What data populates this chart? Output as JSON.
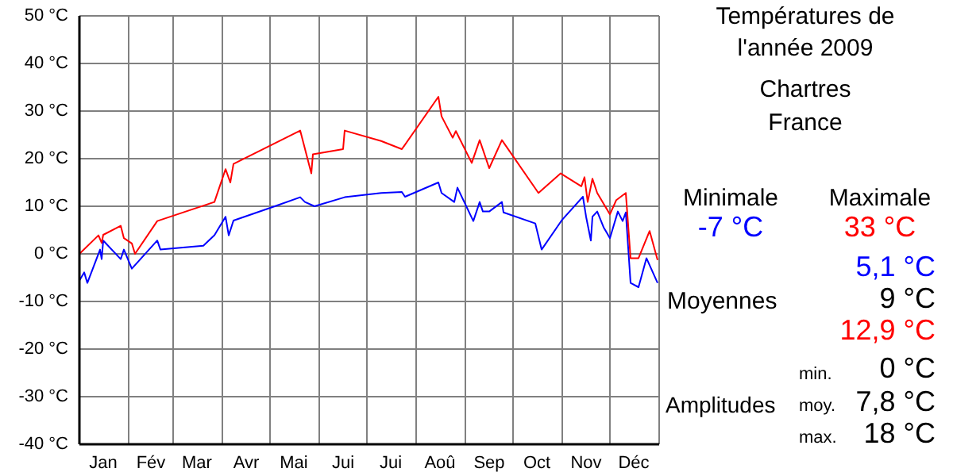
{
  "chart_data": {
    "type": "line",
    "title": "Températures de\nl'année 2009",
    "subtitle": "Chartres\nFrance",
    "xlim": [
      "2009-01-01",
      "2010-01-01"
    ],
    "xticks": [
      {
        "value": "2009-01-01",
        "label": null
      },
      {
        "value": "2009-01-16",
        "label": "Jan"
      },
      {
        "value": "2009-02-01",
        "label": null
      },
      {
        "value": "2009-02-15",
        "label": "Fév"
      },
      {
        "value": "2009-03-01",
        "label": null
      },
      {
        "value": "2009-03-16",
        "label": "Mar"
      },
      {
        "value": "2009-04-01",
        "label": null
      },
      {
        "value": "2009-04-16",
        "label": "Avr"
      },
      {
        "value": "2009-05-01",
        "label": null
      },
      {
        "value": "2009-05-16",
        "label": "Mai"
      },
      {
        "value": "2009-06-01",
        "label": null
      },
      {
        "value": "2009-06-16",
        "label": "Jui"
      },
      {
        "value": "2009-07-01",
        "label": null
      },
      {
        "value": "2009-07-16",
        "label": "Jui"
      },
      {
        "value": "2009-08-01",
        "label": null
      },
      {
        "value": "2009-08-16",
        "label": "Aoû"
      },
      {
        "value": "2009-09-01",
        "label": null
      },
      {
        "value": "2009-09-16",
        "label": "Sep"
      },
      {
        "value": "2009-10-01",
        "label": null
      },
      {
        "value": "2009-10-16",
        "label": "Oct"
      },
      {
        "value": "2009-11-01",
        "label": null
      },
      {
        "value": "2009-11-16",
        "label": "Nov"
      },
      {
        "value": "2009-12-01",
        "label": null
      },
      {
        "value": "2009-12-16",
        "label": "Déc"
      },
      {
        "value": "2010-01-01",
        "label": null
      }
    ],
    "ylim": [
      -40,
      50
    ],
    "yticks": [
      {
        "value": -40,
        "label": "-40 °C"
      },
      {
        "value": -30,
        "label": "-30 °C"
      },
      {
        "value": -20,
        "label": "-20 °C"
      },
      {
        "value": -10,
        "label": "-10 °C"
      },
      {
        "value": 0,
        "label": "0 °C"
      },
      {
        "value": 10,
        "label": "10 °C"
      },
      {
        "value": 20,
        "label": "20 °C"
      },
      {
        "value": 30,
        "label": "30 °C"
      },
      {
        "value": 40,
        "label": "40 °C"
      },
      {
        "value": 50,
        "label": "50 °C"
      }
    ],
    "grid": true,
    "marker": "none",
    "line_style": "solid",
    "series": [
      {
        "color": "#0000ff",
        "x": [
          "2009-01-01",
          "2009-01-04",
          "2009-01-06",
          "2009-01-14",
          "2009-01-15",
          "2009-01-16",
          "2009-01-27",
          "2009-01-29",
          "2009-02-03",
          "2009-02-19",
          "2009-02-21",
          "2009-03-20",
          "2009-03-27",
          "2009-04-03",
          "2009-04-05",
          "2009-04-08",
          "2009-05-04",
          "2009-05-20",
          "2009-05-23",
          "2009-05-29",
          "2009-06-17",
          "2009-07-10",
          "2009-07-23",
          "2009-07-25",
          "2009-08-15",
          "2009-08-17",
          "2009-08-25",
          "2009-08-27",
          "2009-09-06",
          "2009-09-10",
          "2009-09-12",
          "2009-09-16",
          "2009-09-24",
          "2009-09-25",
          "2009-10-15",
          "2009-10-19",
          "2009-11-01",
          "2009-11-14",
          "2009-11-16",
          "2009-11-19",
          "2009-11-20",
          "2009-11-23",
          "2009-11-27",
          "2009-12-01",
          "2009-12-06",
          "2009-12-09",
          "2009-12-11",
          "2009-12-14",
          "2009-12-19",
          "2009-12-24",
          "2009-12-31"
        ],
        "values": [
          -5.6,
          -3.9,
          -6.1,
          0.9,
          -1.1,
          2.8,
          -1.1,
          0.9,
          -3.1,
          2.8,
          0.9,
          1.7,
          3.9,
          7.8,
          3.9,
          7,
          10,
          11.9,
          10.9,
          10,
          11.9,
          12.8,
          13,
          12,
          15,
          12.8,
          10.9,
          13.9,
          6.9,
          10.9,
          8.9,
          8.9,
          10.9,
          8.7,
          6.4,
          0.9,
          7.2,
          12,
          7.8,
          2.8,
          7.8,
          8.9,
          5.6,
          3.3,
          8.9,
          6.9,
          8.7,
          -6.1,
          -7,
          -0.9,
          -6.1
        ]
      },
      {
        "color": "#ff0000",
        "x": [
          "2009-01-01",
          "2009-01-13",
          "2009-01-15",
          "2009-01-16",
          "2009-01-27",
          "2009-01-29",
          "2009-02-03",
          "2009-02-05",
          "2009-02-19",
          "2009-03-27",
          "2009-04-03",
          "2009-04-06",
          "2009-04-08",
          "2009-05-20",
          "2009-05-27",
          "2009-05-28",
          "2009-06-16",
          "2009-06-17",
          "2009-07-10",
          "2009-07-23",
          "2009-08-15",
          "2009-08-17",
          "2009-08-24",
          "2009-08-26",
          "2009-09-05",
          "2009-09-10",
          "2009-09-16",
          "2009-09-24",
          "2009-10-17",
          "2009-10-31",
          "2009-11-13",
          "2009-11-15",
          "2009-11-17",
          "2009-11-20",
          "2009-11-23",
          "2009-12-01",
          "2009-12-05",
          "2009-12-11",
          "2009-12-14",
          "2009-12-19",
          "2009-12-26",
          "2009-12-31"
        ],
        "values": [
          0,
          3.9,
          2.3,
          4,
          5.9,
          3.3,
          2.2,
          0,
          6.9,
          10.9,
          17.8,
          15,
          18.9,
          25.9,
          16.9,
          20.9,
          22,
          25.9,
          23.7,
          22,
          33,
          28.9,
          24.4,
          25.8,
          19.1,
          23.9,
          18,
          23.9,
          12.8,
          16.9,
          14.2,
          16.1,
          10.9,
          15.8,
          12.8,
          8.3,
          11.3,
          12.8,
          -0.9,
          -0.9,
          4.8,
          -1.3
        ]
      }
    ],
    "annotations": [
      "Minimale",
      "Maximale",
      "-7 °C",
      "33 °C",
      "5,1 °C",
      "Moyennes",
      "9 °C",
      "12,9 °C",
      "min.",
      "0 °C",
      "Amplitudes",
      "moy.",
      "7,8 °C",
      "max.",
      "18 °C"
    ]
  }
}
